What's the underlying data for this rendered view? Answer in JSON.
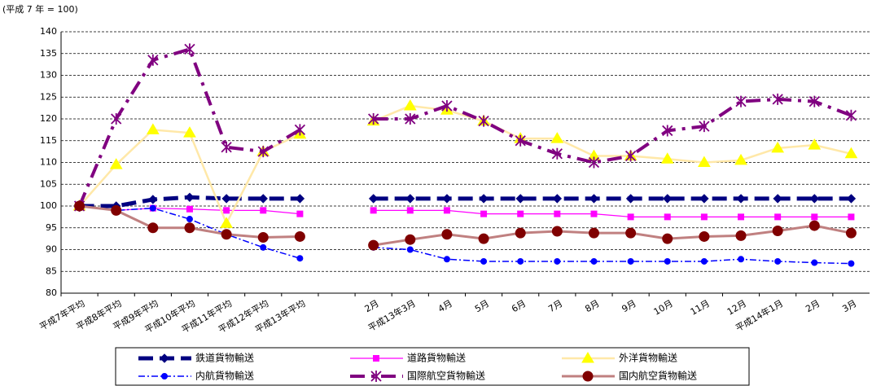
{
  "chart_data": {
    "type": "line",
    "title": "(平成 7 年 = 100)",
    "categories": [
      "平成7年平均",
      "平成8年平均",
      "平成9年平均",
      "平成10年平均",
      "平成11年平均",
      "平成12年平均",
      "平成13年平均",
      null,
      "2月",
      "平成13年3月",
      "4月",
      "5月",
      "6月",
      "7月",
      "8月",
      "9月",
      "10月",
      "11月",
      "12月",
      "平成14年1月",
      "2月",
      "3月"
    ],
    "ylim": [
      80,
      140
    ],
    "yticks": [
      80,
      85,
      90,
      95,
      100,
      105,
      110,
      115,
      120,
      125,
      130,
      135,
      140
    ],
    "grid": true,
    "series": [
      {
        "name": "鉄道貨物輸送",
        "color": "#000080",
        "values": [
          100,
          100,
          101.5,
          102,
          101.7,
          101.7,
          101.7,
          null,
          101.7,
          101.7,
          101.7,
          101.7,
          101.7,
          101.7,
          101.7,
          101.7,
          101.7,
          101.7,
          101.7,
          101.7,
          101.7,
          101.7
        ]
      },
      {
        "name": "道路貨物輸送",
        "color": "#ff00ff",
        "values": [
          100,
          99,
          99.5,
          99.3,
          99,
          99,
          98.2,
          null,
          99,
          99,
          99,
          98.2,
          98.2,
          98.2,
          98.2,
          97.5,
          97.5,
          97.5,
          97.5,
          97.5,
          97.5,
          97.5
        ]
      },
      {
        "name": "外洋貨物輸送",
        "color": "#ffe8a8",
        "values": [
          100,
          109.5,
          117.5,
          116.8,
          96,
          112.5,
          116.5,
          null,
          119.5,
          123,
          122,
          119.5,
          115.5,
          115.5,
          111.5,
          111.5,
          110.8,
          110,
          110.5,
          113.3,
          114,
          112
        ]
      },
      {
        "name": "内航貨物輸送",
        "color": "#0000ff",
        "values": [
          100,
          99,
          99.5,
          97,
          93.5,
          90.5,
          88,
          null,
          90.5,
          90,
          87.8,
          87.3,
          87.3,
          87.3,
          87.3,
          87.3,
          87.3,
          87.3,
          87.8,
          87.3,
          87,
          86.8
        ]
      },
      {
        "name": "国際航空貨物輸送",
        "color": "#800080",
        "values": [
          100,
          120,
          133.5,
          136,
          113.5,
          112.5,
          117.5,
          null,
          120,
          120,
          123,
          119.5,
          115,
          112,
          110,
          111.5,
          117.3,
          118.3,
          124,
          124.5,
          124,
          120.8
        ]
      },
      {
        "name": "国内航空貨物輸送",
        "color": "#c08080",
        "values": [
          100,
          99,
          95,
          95,
          93.5,
          92.8,
          93,
          null,
          91,
          92.3,
          93.5,
          92.5,
          93.8,
          94.2,
          93.8,
          93.8,
          92.5,
          93,
          93.2,
          94.3,
          95.5,
          93.8
        ]
      }
    ]
  }
}
